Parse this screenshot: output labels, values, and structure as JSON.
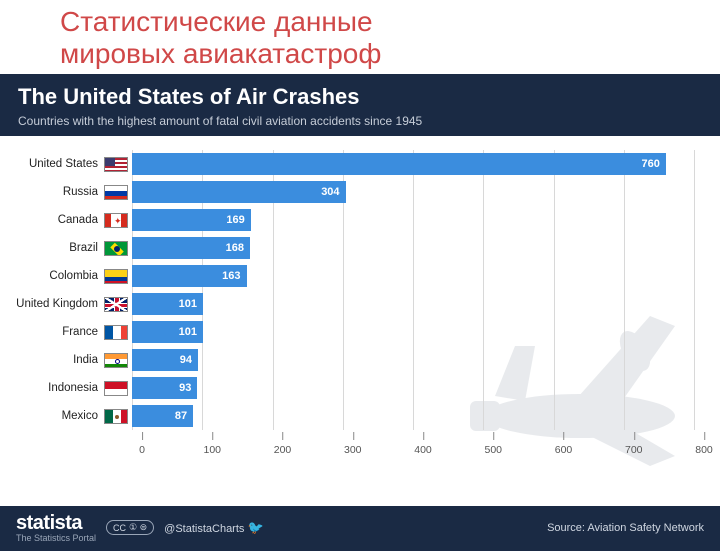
{
  "slide": {
    "title_line1": "Статистические данные",
    "title_line2": "мировых авиакатастроф",
    "title_color": "#d04848",
    "title_fontsize": 28
  },
  "chart": {
    "type": "bar-horizontal",
    "title": "The United States of Air Crashes",
    "subtitle": "Countries with the highest amount of fatal civil aviation accidents since 1945",
    "header_bg": "#1a2a44",
    "title_color": "#ffffff",
    "title_fontsize": 22,
    "subtitle_color": "#c6cdd8",
    "subtitle_fontsize": 12,
    "plot_bg": "#ffffff",
    "bar_color": "#3b8dde",
    "bar_label_color": "#ffffff",
    "bar_label_fontsize": 11,
    "country_label_fontsize": 11.5,
    "xlim": [
      0,
      800
    ],
    "xtick_step": 100,
    "xticks": [
      "0",
      "100",
      "200",
      "300",
      "400",
      "500",
      "600",
      "700",
      "800"
    ],
    "grid_color": "#d8d8d8",
    "plane_silhouette_color": "#bfc5cc",
    "data": [
      {
        "country": "United States",
        "value": 760,
        "flag": "us"
      },
      {
        "country": "Russia",
        "value": 304,
        "flag": "ru"
      },
      {
        "country": "Canada",
        "value": 169,
        "flag": "ca"
      },
      {
        "country": "Brazil",
        "value": 168,
        "flag": "br"
      },
      {
        "country": "Colombia",
        "value": 163,
        "flag": "co"
      },
      {
        "country": "United Kingdom",
        "value": 101,
        "flag": "uk"
      },
      {
        "country": "France",
        "value": 101,
        "flag": "fr"
      },
      {
        "country": "India",
        "value": 94,
        "flag": "in"
      },
      {
        "country": "Indonesia",
        "value": 93,
        "flag": "id"
      },
      {
        "country": "Mexico",
        "value": 87,
        "flag": "mx"
      }
    ]
  },
  "footer": {
    "brand": "statista",
    "brand_sub": "The Statistics Portal",
    "cc_label": "CC",
    "cc_parts": "① ⊜",
    "handle": "@StatistaCharts",
    "source": "Source: Aviation Safety Network"
  },
  "flag_palette": {
    "us": {
      "bg": "#ffffff",
      "stripes": "#b22234",
      "canton": "#3c3b6e"
    },
    "ru": {
      "top": "#ffffff",
      "mid": "#0039a6",
      "bot": "#d52b1e"
    },
    "ca": {
      "side": "#d52b1e",
      "mid": "#ffffff",
      "leaf": "#d52b1e"
    },
    "br": {
      "bg": "#009739",
      "diamond": "#fedd00",
      "circle": "#012169"
    },
    "co": {
      "top": "#fcd116",
      "mid": "#003893",
      "bot": "#ce1126"
    },
    "uk": {
      "bg": "#012169",
      "cross": "#c8102e",
      "white": "#ffffff"
    },
    "fr": {
      "l": "#0055a4",
      "m": "#ffffff",
      "r": "#ef4135"
    },
    "in": {
      "top": "#ff9933",
      "mid": "#ffffff",
      "bot": "#138808",
      "wheel": "#000080"
    },
    "id": {
      "top": "#ce1126",
      "bot": "#ffffff"
    },
    "mx": {
      "l": "#006847",
      "m": "#ffffff",
      "r": "#ce1126",
      "emblem": "#8a5a2b"
    }
  }
}
